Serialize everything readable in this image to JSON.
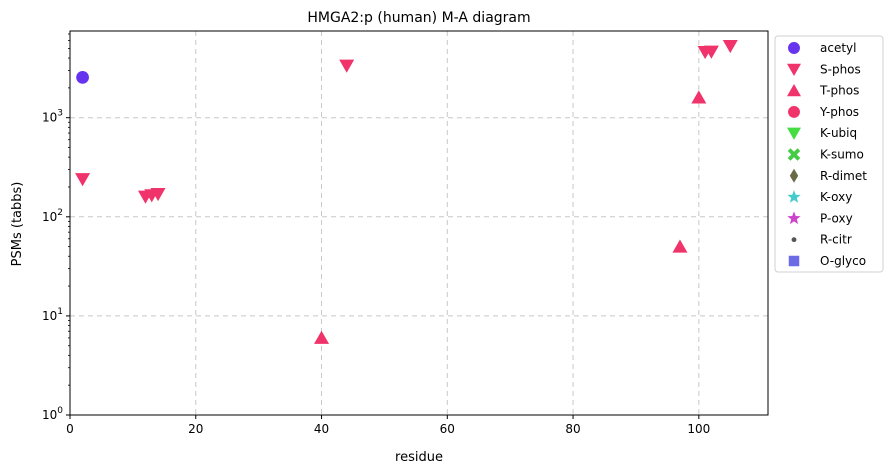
{
  "chart_data": {
    "type": "scatter",
    "title": "HMGA2:p (human) M-A diagram",
    "xlabel": "residue",
    "ylabel": "PSMs (tabbs)",
    "xlim": [
      0,
      111
    ],
    "ylim": [
      1,
      7500
    ],
    "yscale": "log",
    "grid": true,
    "legend_position": "outside-right",
    "x_ticks": [
      {
        "value": 0,
        "label": "0"
      },
      {
        "value": 20,
        "label": "20"
      },
      {
        "value": 40,
        "label": "40"
      },
      {
        "value": 60,
        "label": "60"
      },
      {
        "value": 80,
        "label": "80"
      },
      {
        "value": 100,
        "label": "100"
      }
    ],
    "y_ticks": [
      {
        "value": 1,
        "base": "10",
        "exp": "0"
      },
      {
        "value": 10,
        "base": "10",
        "exp": "1"
      },
      {
        "value": 100,
        "base": "10",
        "exp": "2"
      },
      {
        "value": 1000,
        "base": "10",
        "exp": "3"
      }
    ],
    "series": [
      {
        "name": "acetyl",
        "marker": "circle",
        "color": "#6633ee",
        "points": [
          [
            2,
            2550
          ]
        ]
      },
      {
        "name": "S-phos",
        "marker": "triangle-down",
        "color": "#f0336a",
        "points": [
          [
            2,
            240
          ],
          [
            12,
            160
          ],
          [
            13,
            165
          ],
          [
            14,
            170
          ],
          [
            44,
            3350
          ],
          [
            101,
            4600
          ],
          [
            102,
            4650
          ],
          [
            105,
            5300
          ]
        ]
      },
      {
        "name": "T-phos",
        "marker": "triangle-up",
        "color": "#f0336a",
        "points": [
          [
            40,
            6
          ],
          [
            97,
            50
          ],
          [
            100,
            1600
          ]
        ]
      },
      {
        "name": "Y-phos",
        "marker": "circle",
        "color": "#f0336a",
        "points": []
      },
      {
        "name": "K-ubiq",
        "marker": "triangle-down",
        "color": "#44dd44",
        "points": []
      },
      {
        "name": "K-sumo",
        "marker": "x",
        "color": "#44cc44",
        "points": []
      },
      {
        "name": "R-dimet",
        "marker": "diamond",
        "color": "#6b6b4a",
        "points": []
      },
      {
        "name": "K-oxy",
        "marker": "star",
        "color": "#44cccc",
        "points": []
      },
      {
        "name": "P-oxy",
        "marker": "star",
        "color": "#cc44cc",
        "points": []
      },
      {
        "name": "R-citr",
        "marker": "dot",
        "color": "#555555",
        "points": []
      },
      {
        "name": "O-glyco",
        "marker": "square",
        "color": "#6b6be6",
        "points": []
      }
    ]
  }
}
